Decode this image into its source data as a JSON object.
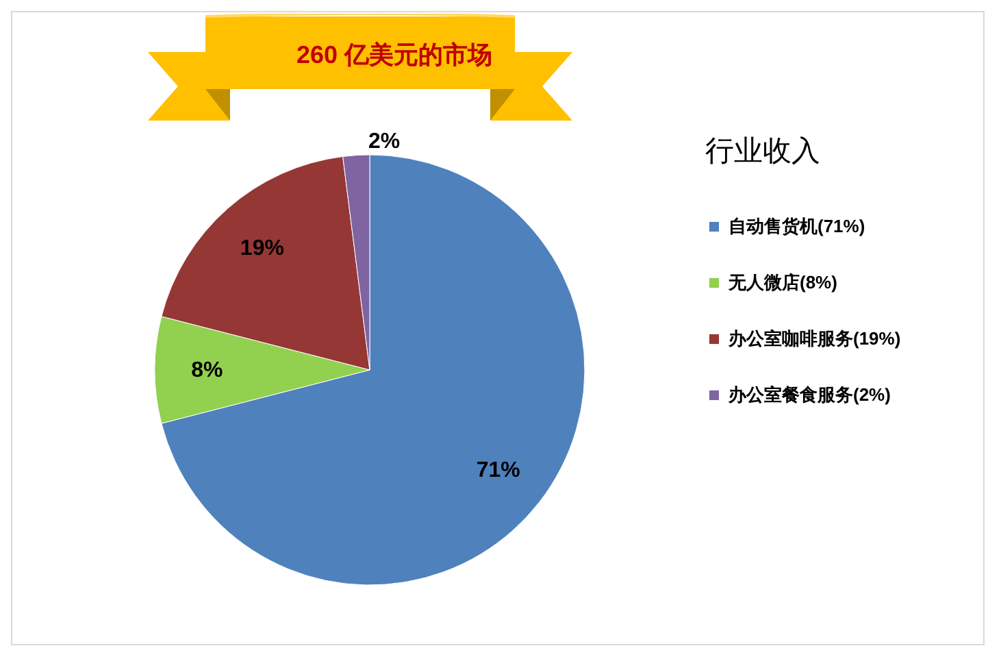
{
  "chart_data": {
    "type": "pie",
    "title": "260 亿美元的市场",
    "legend_title": "行业收入",
    "categories": [
      "自动售货机(71%)",
      "无人微店(8%)",
      "办公室咖啡服务(19%)",
      "办公室餐食服务(2%)"
    ],
    "values": [
      71,
      8,
      19,
      2
    ],
    "colors": [
      "#4f81bd",
      "#92d050",
      "#953735",
      "#8064a2"
    ],
    "value_labels": [
      "71%",
      "8%",
      "19%",
      "2%"
    ],
    "legend": "right"
  }
}
